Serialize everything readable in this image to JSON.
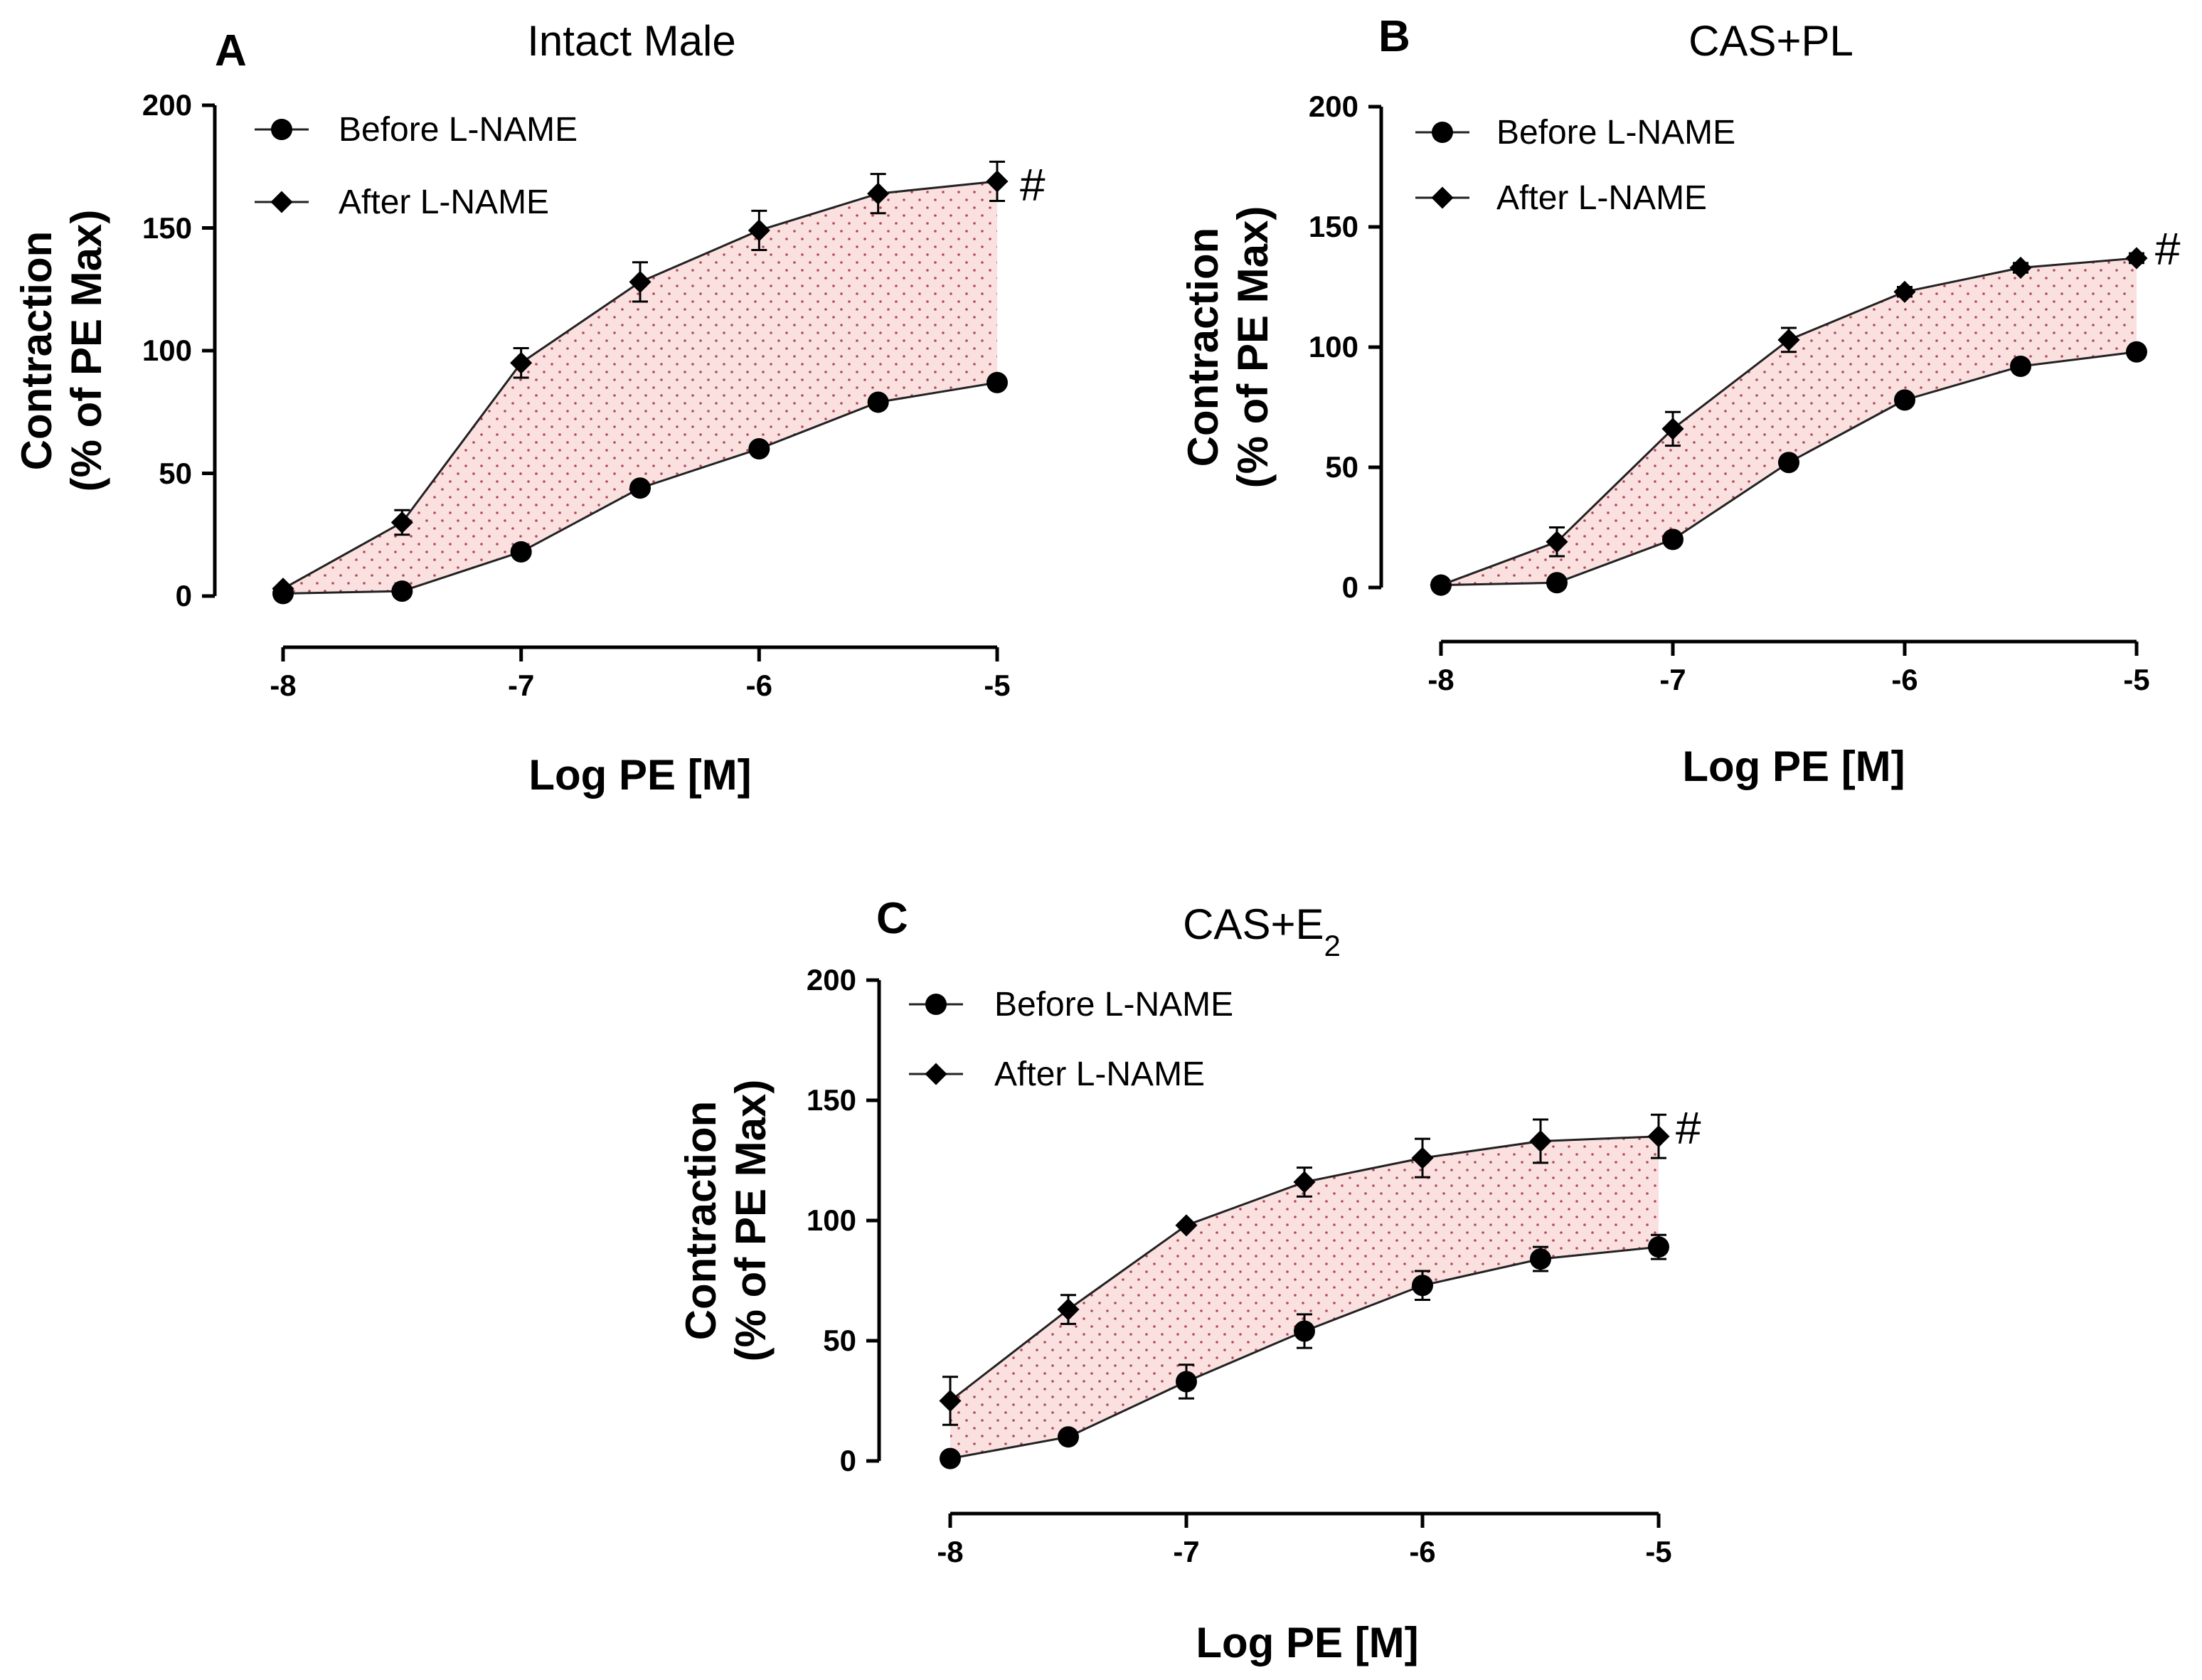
{
  "chart_data": [
    {
      "panel": "A",
      "type": "line",
      "title": "Intact Male",
      "xlabel": "Log PE [M]",
      "ylabel_line1": "Contraction",
      "ylabel_line2": "(% of PE Max)",
      "xlim": [
        -8,
        -5
      ],
      "ylim": [
        0,
        200
      ],
      "xticks": [
        "-8",
        "-7",
        "-6",
        "-5"
      ],
      "yticks": [
        "0",
        "50",
        "100",
        "150",
        "200"
      ],
      "x": [
        -8,
        -7.5,
        -7,
        -6.5,
        -6,
        -5.5,
        -5
      ],
      "legend_position": "top-left",
      "annotation": "#",
      "series": [
        {
          "name": "Before L-NAME",
          "marker": "circle",
          "values": [
            1,
            2,
            18,
            44,
            60,
            79,
            87
          ],
          "errors": [
            0,
            0,
            0,
            0,
            0,
            0,
            0
          ]
        },
        {
          "name": "After L-NAME",
          "marker": "diamond",
          "values": [
            3,
            30,
            95,
            128,
            149,
            164,
            169
          ],
          "errors": [
            0,
            5,
            6,
            8,
            8,
            8,
            8
          ]
        }
      ]
    },
    {
      "panel": "B",
      "type": "line",
      "title": "CAS+PL",
      "xlabel": "Log PE [M]",
      "ylabel_line1": "Contraction",
      "ylabel_line2": "(% of PE Max)",
      "xlim": [
        -8,
        -5
      ],
      "ylim": [
        0,
        200
      ],
      "xticks": [
        "-8",
        "-7",
        "-6",
        "-5"
      ],
      "yticks": [
        "0",
        "50",
        "100",
        "150",
        "200"
      ],
      "x": [
        -8,
        -7.5,
        -7,
        -6.5,
        -6,
        -5.5,
        -5
      ],
      "legend_position": "top-left",
      "annotation": "#",
      "series": [
        {
          "name": "Before L-NAME",
          "marker": "circle",
          "values": [
            1,
            2,
            20,
            52,
            78,
            92,
            98
          ],
          "errors": [
            0,
            0,
            0,
            0,
            0,
            0,
            0
          ]
        },
        {
          "name": "After L-NAME",
          "marker": "diamond",
          "values": [
            1,
            19,
            66,
            103,
            123,
            133,
            137
          ],
          "errors": [
            0,
            6,
            7,
            5,
            2,
            2,
            2
          ]
        }
      ]
    },
    {
      "panel": "C",
      "type": "line",
      "title": "CAS+E",
      "title_subscript": "2",
      "xlabel": "Log PE [M]",
      "ylabel_line1": "Contraction",
      "ylabel_line2": "(% of PE Max)",
      "xlim": [
        -8,
        -5
      ],
      "ylim": [
        0,
        200
      ],
      "xticks": [
        "-8",
        "-7",
        "-6",
        "-5"
      ],
      "yticks": [
        "0",
        "50",
        "100",
        "150",
        "200"
      ],
      "x": [
        -8,
        -7.5,
        -7,
        -6.5,
        -6,
        -5.5,
        -5
      ],
      "legend_position": "top-left",
      "annotation": "#",
      "series": [
        {
          "name": "Before L-NAME",
          "marker": "circle",
          "values": [
            1,
            10,
            33,
            54,
            73,
            84,
            89
          ],
          "errors": [
            0,
            0,
            7,
            7,
            6,
            5,
            5
          ]
        },
        {
          "name": "After L-NAME",
          "marker": "diamond",
          "values": [
            25,
            63,
            98,
            116,
            126,
            133,
            135
          ],
          "errors": [
            10,
            6,
            0,
            6,
            8,
            9,
            9
          ]
        }
      ]
    }
  ],
  "colors": {
    "fill": "#fbe0e0",
    "dots": "#b04a5a",
    "ink": "#000000"
  }
}
